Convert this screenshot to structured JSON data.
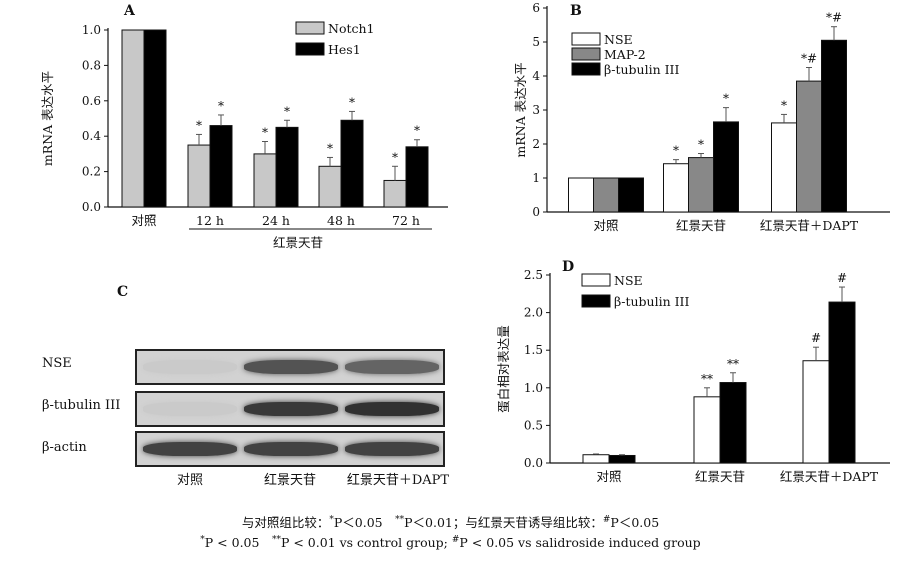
{
  "chart_data": [
    {
      "panel": "A",
      "type": "bar",
      "ylabel": "mRNA 表达水平",
      "ylim": [
        0,
        1.0
      ],
      "yticks": [
        "0.0",
        "0.2",
        "0.4",
        "0.6",
        "0.8",
        "1.0"
      ],
      "categories": [
        "对照",
        "12 h",
        "24 h",
        "48 h",
        "72 h"
      ],
      "group_label": "红景天苷",
      "series": [
        {
          "name": "Notch1",
          "color": "#c8c8c8",
          "values": [
            1.0,
            0.35,
            0.3,
            0.23,
            0.15
          ],
          "errors": [
            0,
            0.06,
            0.07,
            0.05,
            0.08
          ],
          "marks": [
            "",
            "*",
            "*",
            "*",
            "*"
          ]
        },
        {
          "name": "Hes1",
          "color": "#000000",
          "values": [
            1.0,
            0.46,
            0.45,
            0.49,
            0.34
          ],
          "errors": [
            0,
            0.06,
            0.04,
            0.05,
            0.04
          ],
          "marks": [
            "",
            "*",
            "*",
            "*",
            "*"
          ]
        }
      ],
      "legend": "top-right"
    },
    {
      "panel": "B",
      "type": "bar",
      "ylabel": "mRNA 表达水平",
      "ylim": [
        0,
        6
      ],
      "yticks": [
        "0",
        "1",
        "2",
        "3",
        "4",
        "5",
        "6"
      ],
      "categories": [
        "对照",
        "红景天苷",
        "红景天苷＋DAPT"
      ],
      "series": [
        {
          "name": "NSE",
          "color": "#ffffff",
          "values": [
            1.0,
            1.42,
            2.62
          ],
          "errors": [
            0,
            0.12,
            0.25
          ],
          "marks": [
            "",
            "*",
            "*"
          ]
        },
        {
          "name": "MAP-2",
          "color": "#888888",
          "values": [
            1.0,
            1.6,
            3.85
          ],
          "errors": [
            0,
            0.12,
            0.4
          ],
          "marks": [
            "",
            "*",
            "*#"
          ]
        },
        {
          "name": "β-tubulin III",
          "color": "#000000",
          "values": [
            1.0,
            2.65,
            5.05
          ],
          "errors": [
            0,
            0.42,
            0.4
          ],
          "marks": [
            "",
            "*",
            "*#"
          ]
        }
      ],
      "legend": "top-left"
    },
    {
      "panel": "D",
      "type": "bar",
      "ylabel": "蛋白相对表达量",
      "ylim": [
        0,
        2.5
      ],
      "yticks": [
        "0.0",
        "0.5",
        "1.0",
        "1.5",
        "2.0",
        "2.5"
      ],
      "categories": [
        "对照",
        "红景天苷",
        "红景天苷＋DAPT"
      ],
      "series": [
        {
          "name": "NSE",
          "color": "#ffffff",
          "values": [
            0.11,
            0.88,
            1.36
          ],
          "errors": [
            0.01,
            0.12,
            0.18
          ],
          "marks": [
            "",
            "**",
            "#"
          ]
        },
        {
          "name": "β-tubulin III",
          "color": "#000000",
          "values": [
            0.1,
            1.07,
            2.14
          ],
          "errors": [
            0.01,
            0.13,
            0.2
          ],
          "marks": [
            "",
            "**",
            "#"
          ]
        }
      ],
      "legend": "top-left"
    }
  ],
  "panelC": {
    "letter": "C",
    "rows": [
      "NSE",
      "β-tubulin III",
      "β-actin"
    ],
    "lanes": [
      "对照",
      "红景天苷",
      "红景天苷＋DAPT"
    ],
    "intensity": [
      [
        0.05,
        0.75,
        0.65
      ],
      [
        0.05,
        0.9,
        0.95
      ],
      [
        0.85,
        0.85,
        0.85
      ]
    ]
  },
  "footnote": {
    "line1": "与对照组比较：*P＜0.05　**P＜0.01；与红景天苷诱导组比较：#P＜0.05",
    "line2": "*P < 0.05　**P < 0.01 vs control group; #P < 0.05 vs salidroside induced group"
  }
}
